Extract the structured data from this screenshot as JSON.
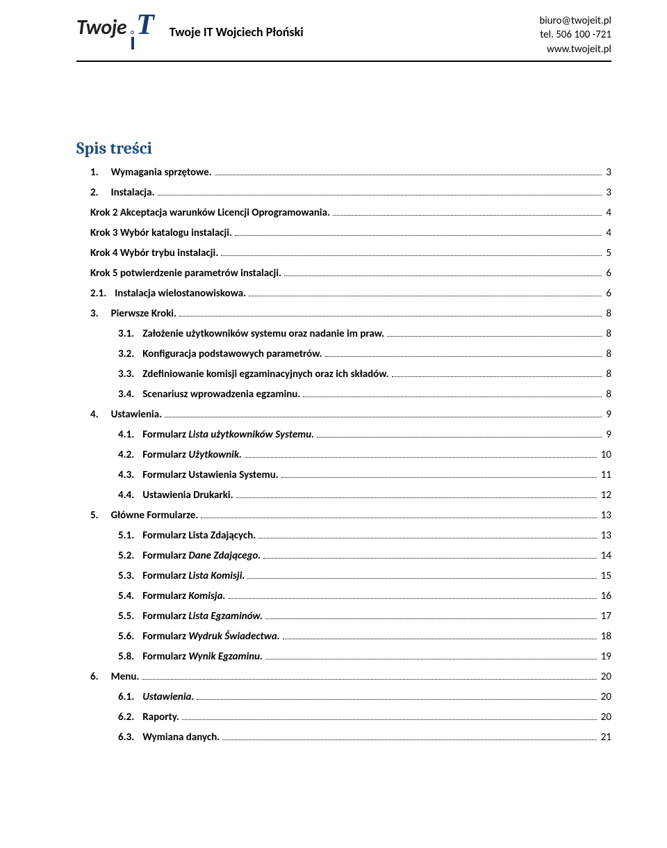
{
  "header": {
    "logo_text_1": "Twoje",
    "logo_text_2": "T",
    "company_name": "Twoje IT Wojciech Płoński",
    "contact": {
      "email": "biuro@twojeit.pl",
      "phone": "tel. 506 100 -721",
      "web": "www.twojeit.pl"
    }
  },
  "toc_title": "Spis treści",
  "toc": [
    {
      "lvl": 1,
      "num": "1.",
      "text": "Wymagania sprzętowe.",
      "page": "3"
    },
    {
      "lvl": 1,
      "num": "2.",
      "text": "Instalacja.",
      "page": "3"
    },
    {
      "lvl": 2,
      "num": "",
      "text": "Krok 2 Akceptacja warunków Licencji Oprogramowania.",
      "page": "4"
    },
    {
      "lvl": 2,
      "num": "",
      "text": "Krok 3 Wybór katalogu instalacji.",
      "page": "4"
    },
    {
      "lvl": 2,
      "num": "",
      "text": "Krok 4 Wybór trybu instalacji.",
      "page": "5"
    },
    {
      "lvl": 2,
      "num": "",
      "text": "Krok 5 potwierdzenie parametrów instalacji.",
      "page": "6"
    },
    {
      "lvl": 2,
      "num": "2.1.",
      "text": "Instalacja wielostanowiskowa.",
      "page": "6"
    },
    {
      "lvl": 1,
      "num": "3.",
      "text": "Pierwsze Kroki.",
      "page": "8"
    },
    {
      "lvl": 3,
      "num": "3.1.",
      "text": "Założenie użytkowników systemu oraz nadanie im praw.",
      "page": "8"
    },
    {
      "lvl": 3,
      "num": "3.2.",
      "text": "Konfiguracja podstawowych parametrów.",
      "page": "8"
    },
    {
      "lvl": 3,
      "num": "3.3.",
      "text": "Zdefiniowanie komisji egzaminacyjnych oraz ich składów.",
      "page": "8"
    },
    {
      "lvl": 3,
      "num": "3.4.",
      "text": "Scenariusz wprowadzenia egzaminu.",
      "page": "8"
    },
    {
      "lvl": 1,
      "num": "4.",
      "text": "Ustawienia.",
      "page": "9"
    },
    {
      "lvl": 3,
      "num": "4.1.",
      "text_html": "Formularz <em>Lista użytkowników Systemu.</em>",
      "page": "9"
    },
    {
      "lvl": 3,
      "num": "4.2.",
      "text_html": "Formularz <em>Użytkownik.</em>",
      "page": "10"
    },
    {
      "lvl": 3,
      "num": "4.3.",
      "text": "Formularz Ustawienia Systemu.",
      "page": "11"
    },
    {
      "lvl": 3,
      "num": "4.4.",
      "text": "Ustawienia Drukarki.",
      "page": "12"
    },
    {
      "lvl": 1,
      "num": "5.",
      "text": "Główne Formularze.",
      "page": "13"
    },
    {
      "lvl": 3,
      "num": "5.1.",
      "text": "Formularz Lista Zdających.",
      "page": "13"
    },
    {
      "lvl": 3,
      "num": "5.2.",
      "text_html": "Formularz <em>Dane Zdającego.</em>",
      "page": "14"
    },
    {
      "lvl": 3,
      "num": "5.3.",
      "text_html": "Formularz <em>Lista Komisji.</em>",
      "page": "15"
    },
    {
      "lvl": 3,
      "num": "5.4.",
      "text_html": "Formularz <em>Komisja.</em>",
      "page": "16"
    },
    {
      "lvl": 3,
      "num": "5.5.",
      "text_html": "Formularz <em>Lista Egzaminów.</em>",
      "page": "17"
    },
    {
      "lvl": 3,
      "num": "5.6.",
      "text_html": "Formularz <em>Wydruk Świadectwa.</em>",
      "page": "18"
    },
    {
      "lvl": 3,
      "num": "5.8.",
      "text_html": "Formularz <em>Wynik Egzaminu.</em>",
      "page": "19"
    },
    {
      "lvl": 1,
      "num": "6.",
      "text": "Menu.",
      "page": "20"
    },
    {
      "lvl": 3,
      "num": "6.1.",
      "text_html": "<em>Ustawienia.</em>",
      "page": "20"
    },
    {
      "lvl": 3,
      "num": "6.2.",
      "text": "Raporty.",
      "page": "20"
    },
    {
      "lvl": 3,
      "num": "6.3.",
      "text": "Wymiana danych.",
      "page": "21"
    }
  ]
}
